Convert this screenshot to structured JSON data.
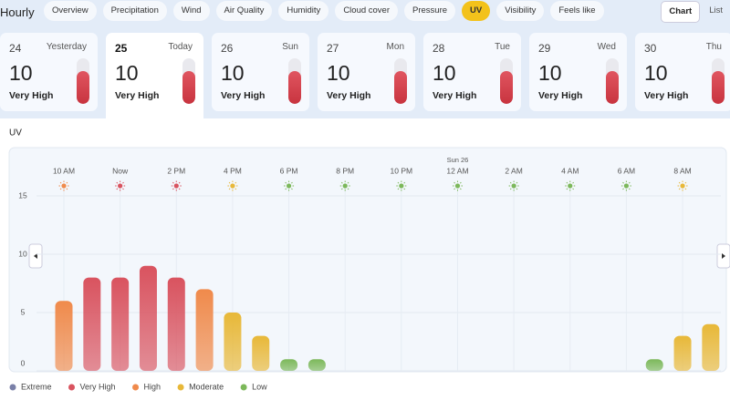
{
  "header": {
    "title": "Hourly",
    "tabs": [
      "Overview",
      "Precipitation",
      "Wind",
      "Air Quality",
      "Humidity",
      "Cloud cover",
      "Pressure",
      "UV",
      "Visibility",
      "Feels like"
    ],
    "views": [
      "Chart",
      "List"
    ]
  },
  "days": [
    {
      "date": "24",
      "label": "Yesterday",
      "value": 10,
      "level": "Very High"
    },
    {
      "date": "25",
      "label": "Today",
      "value": 10,
      "level": "Very High"
    },
    {
      "date": "26",
      "label": "Sun",
      "value": 10,
      "level": "Very High"
    },
    {
      "date": "27",
      "label": "Mon",
      "value": 10,
      "level": "Very High"
    },
    {
      "date": "28",
      "label": "Tue",
      "value": 10,
      "level": "Very High"
    },
    {
      "date": "29",
      "label": "Wed",
      "value": 10,
      "level": "Very High"
    },
    {
      "date": "30",
      "label": "Thu",
      "value": 10,
      "level": "Very High"
    }
  ],
  "chart_data": {
    "type": "bar",
    "title": "UV",
    "categories": [
      "10 AM",
      null,
      "Now",
      null,
      "2 PM",
      null,
      "4 PM",
      null,
      "6 PM",
      null,
      "8 PM",
      null,
      "10 PM",
      null,
      "12 AM",
      null,
      "2 AM",
      null,
      "4 AM",
      null,
      "6 AM",
      null,
      "8 AM",
      null
    ],
    "date_marker": {
      "label": "Sun 26",
      "category": "12 AM"
    },
    "values": [
      6,
      8,
      8,
      9,
      8,
      7,
      5,
      3,
      1,
      1,
      0,
      0,
      0,
      0,
      0,
      0,
      0,
      0,
      0,
      0,
      0,
      1,
      3,
      4
    ],
    "colors": [
      "#f08a4b",
      "#d9535f",
      "#d9535f",
      "#d9535f",
      "#d9535f",
      "#f08a4b",
      "#e8b838",
      "#e8b838",
      "#7cb85a",
      "#7cb85a",
      "#7cb85a",
      "#7cb85a",
      "#7cb85a",
      "#7cb85a",
      "#7cb85a",
      "#7cb85a",
      "#7cb85a",
      "#7cb85a",
      "#7cb85a",
      "#7cb85a",
      "#7cb85a",
      "#7cb85a",
      "#e8b838",
      "#e8b838"
    ],
    "icon_colors": [
      "#f08a4b",
      null,
      "#d9535f",
      null,
      "#d9535f",
      null,
      "#e8b838",
      null,
      "#7cb85a",
      null,
      "#7cb85a",
      null,
      "#7cb85a",
      null,
      "#7cb85a",
      null,
      "#7cb85a",
      null,
      "#7cb85a",
      null,
      "#7cb85a",
      null,
      "#e8b838",
      null
    ],
    "ylim": [
      0,
      15
    ],
    "yticks": [
      0,
      5,
      10,
      15
    ],
    "grid": true,
    "legend": [
      {
        "name": "Extreme",
        "color": "#7a80a8"
      },
      {
        "name": "Very High",
        "color": "#d9535f"
      },
      {
        "name": "High",
        "color": "#f08a4b"
      },
      {
        "name": "Moderate",
        "color": "#e8b838"
      },
      {
        "name": "Low",
        "color": "#7cb85a"
      }
    ]
  }
}
